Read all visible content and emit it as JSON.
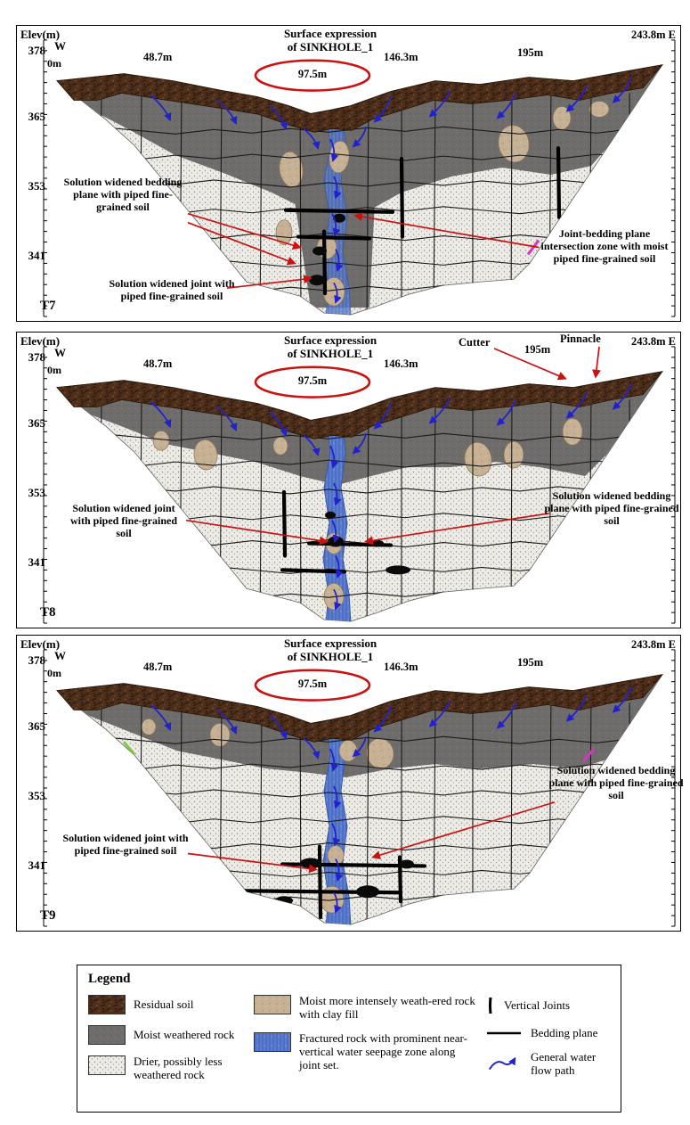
{
  "panels": [
    {
      "id": "T7",
      "axis_label": "Elev(m)",
      "west": "W",
      "east": "E",
      "elevations": [
        "378",
        "365",
        "353",
        "341"
      ],
      "origin": "0m",
      "distances": [
        "48.7m",
        "97.5m",
        "146.3m",
        "195m",
        "243.8m"
      ],
      "title_line1": "Surface expression",
      "title_line2": "of SINKHOLE_1",
      "annotations": {
        "bedding": "Solution widened bedding plane with piped fine-grained soil",
        "joint": "Solution widened joint with piped fine-grained soil",
        "intersection": "Joint-bedding plane intersection zone with moist piped fine-grained soil"
      }
    },
    {
      "id": "T8",
      "axis_label": "Elev(m)",
      "west": "W",
      "east": "E",
      "elevations": [
        "378",
        "365",
        "353",
        "341"
      ],
      "origin": "0m",
      "distances": [
        "48.7m",
        "97.5m",
        "146.3m",
        "195m",
        "243.8m"
      ],
      "title_line1": "Surface expression",
      "title_line2": "of SINKHOLE_1",
      "cutter": "Cutter",
      "pinnacle": "Pinnacle",
      "annotations": {
        "joint": "Solution widened joint with piped fine-grained soil",
        "bedding": "Solution widened bedding plane with piped fine-grained soil"
      }
    },
    {
      "id": "T9",
      "axis_label": "Elev(m)",
      "west": "W",
      "east": "E",
      "elevations": [
        "378",
        "365",
        "353",
        "341"
      ],
      "origin": "0m",
      "distances": [
        "48.7m",
        "97.5m",
        "146.3m",
        "195m",
        "243.8m"
      ],
      "title_line1": "Surface expression",
      "title_line2": "of SINKHOLE_1",
      "annotations": {
        "joint": "Solution widened joint with piped fine-grained soil",
        "bedding": "Solution widened bedding plane with piped fine-grained soil"
      }
    }
  ],
  "legend": {
    "title": "Legend",
    "residual_soil": "Residual soil",
    "moist_weathered": "Moist weathered rock",
    "drier": "Drier, possibly less weathered rock",
    "clay_fill": "Moist more intensely weath-ered rock with clay fill",
    "fractured": "Fractured rock with prominent near-vertical water seepage zone along joint set.",
    "vertical_joints": "Vertical Joints",
    "bedding_plane": "Bedding plane",
    "water_flow": "General water flow path"
  },
  "colors": {
    "residual_soil": "#4e2f1b",
    "moist_weathered_rock": "#6e6d6b",
    "drier_rock": "#edebe5",
    "clay_fill": "#c7b195",
    "seepage_zone": "#5b7ed2",
    "water_flow_arrow": "#2222cc",
    "annotation_red": "#cc1111"
  }
}
